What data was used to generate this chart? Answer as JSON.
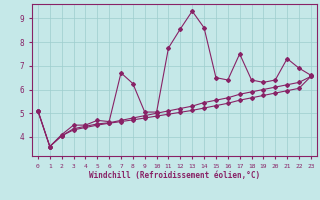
{
  "xlabel": "Windchill (Refroidissement éolien,°C)",
  "ylabel": "",
  "xlim": [
    -0.5,
    23.5
  ],
  "ylim": [
    3.2,
    9.6
  ],
  "yticks": [
    4,
    5,
    6,
    7,
    8,
    9
  ],
  "xticks": [
    0,
    1,
    2,
    3,
    4,
    5,
    6,
    7,
    8,
    9,
    10,
    11,
    12,
    13,
    14,
    15,
    16,
    17,
    18,
    19,
    20,
    21,
    22,
    23
  ],
  "bg_color": "#c5e8e8",
  "grid_color": "#9ecece",
  "line_color": "#882266",
  "series1_x": [
    0,
    1,
    2,
    3,
    4,
    5,
    6,
    7,
    8,
    9,
    10,
    11,
    12,
    13,
    14,
    15,
    16,
    17,
    18,
    19,
    20,
    21,
    22,
    23
  ],
  "series1_y": [
    5.1,
    3.6,
    4.1,
    4.5,
    4.5,
    4.7,
    4.65,
    6.7,
    6.25,
    5.05,
    5.05,
    7.75,
    8.55,
    9.3,
    8.6,
    6.5,
    6.4,
    7.5,
    6.4,
    6.3,
    6.4,
    7.3,
    6.9,
    6.6
  ],
  "series2_x": [
    0,
    1,
    2,
    3,
    4,
    5,
    6,
    7,
    8,
    9,
    10,
    11,
    12,
    13,
    14,
    15,
    16,
    17,
    18,
    19,
    20,
    21,
    22,
    23
  ],
  "series2_y": [
    5.1,
    3.6,
    4.05,
    4.35,
    4.45,
    4.55,
    4.6,
    4.7,
    4.8,
    4.9,
    5.0,
    5.1,
    5.2,
    5.3,
    5.45,
    5.55,
    5.65,
    5.8,
    5.9,
    6.0,
    6.1,
    6.2,
    6.3,
    6.55
  ],
  "series3_x": [
    0,
    1,
    2,
    3,
    4,
    5,
    6,
    7,
    8,
    9,
    10,
    11,
    12,
    13,
    14,
    15,
    16,
    17,
    18,
    19,
    20,
    21,
    22,
    23
  ],
  "series3_y": [
    5.1,
    3.6,
    4.05,
    4.3,
    4.4,
    4.5,
    4.58,
    4.65,
    4.72,
    4.8,
    4.88,
    4.96,
    5.04,
    5.12,
    5.22,
    5.32,
    5.42,
    5.55,
    5.65,
    5.75,
    5.85,
    5.95,
    6.05,
    6.55
  ],
  "marker": "D",
  "markersize": 2.0,
  "linewidth": 0.8
}
